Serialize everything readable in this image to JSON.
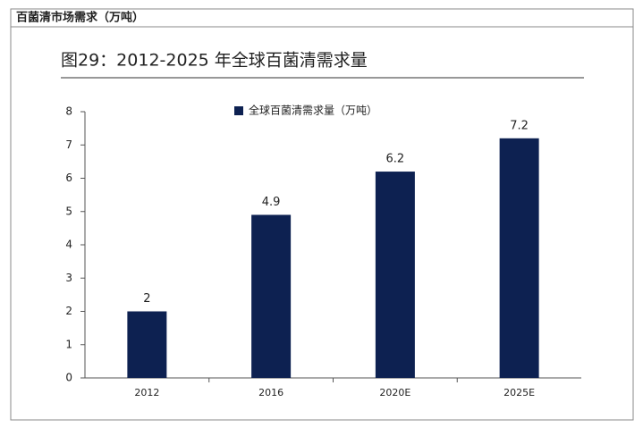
{
  "header": "百菌清市场需求（万吨）",
  "chart_data": {
    "type": "bar",
    "title": "图29：2012-2025 年全球百菌清需求量",
    "categories": [
      "2012",
      "2016",
      "2020E",
      "2025E"
    ],
    "series": [
      {
        "name": "全球百菌清需求量（万吨）",
        "color": "#0d2151",
        "values": [
          2,
          4.9,
          6.2,
          7.2
        ]
      }
    ],
    "ylim": [
      0,
      8
    ],
    "yticks": [
      0,
      1,
      2,
      3,
      4,
      5,
      6,
      7,
      8
    ],
    "grid": false,
    "legend": "top"
  }
}
